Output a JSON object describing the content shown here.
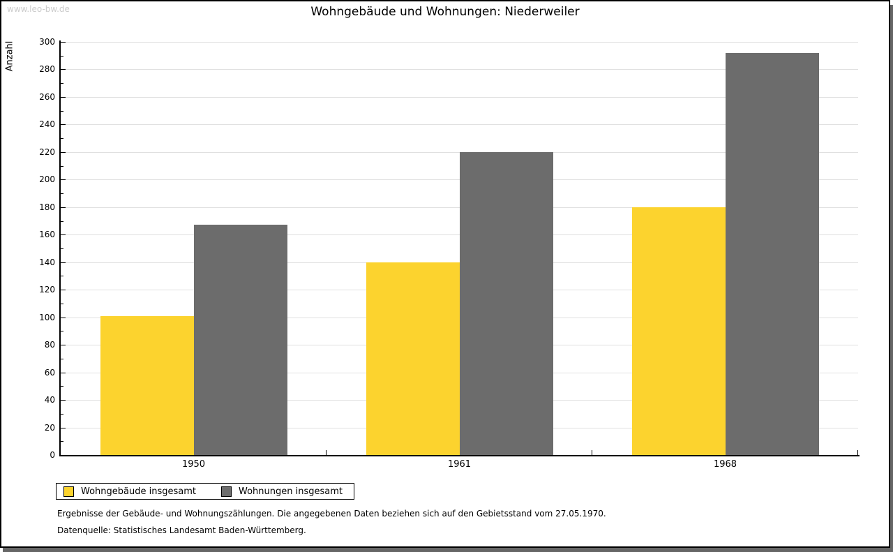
{
  "watermark": "www.leo-bw.de",
  "title": "Wohngebäude und Wohnungen: Niederweiler",
  "y_axis_label": "Anzahl",
  "legend": {
    "items": [
      {
        "label": "Wohngebäude insgesamt",
        "color": "#FCD32E"
      },
      {
        "label": "Wohnungen insgesamt",
        "color": "#6C6C6C"
      }
    ]
  },
  "footnotes": [
    "Ergebnisse der Gebäude- und Wohnungszählungen. Die angegebenen Daten beziehen sich auf den Gebietsstand vom 27.05.1970.",
    "Datenquelle: Statistisches Landesamt Baden-Württemberg."
  ],
  "colors": {
    "grid": "#E0E0E0",
    "axis": "#000000",
    "watermark": "#CCCCCC",
    "shadow": "#666666",
    "background": "#FFFFFF"
  },
  "chart_data": {
    "type": "bar",
    "title": "Wohngebäude und Wohnungen: Niederweiler",
    "categories": [
      "1950",
      "1961",
      "1968"
    ],
    "series": [
      {
        "name": "Wohngebäude insgesamt",
        "color": "#FCD32E",
        "values": [
          101,
          140,
          180
        ]
      },
      {
        "name": "Wohnungen insgesamt",
        "color": "#6C6C6C",
        "values": [
          167,
          220,
          292
        ]
      }
    ],
    "xlabel": "",
    "ylabel": "Anzahl",
    "ylim": [
      0,
      300
    ],
    "y_tick_step": 20,
    "y_minor_tick_step": 10,
    "grid": true,
    "legend_position": "bottom-left"
  }
}
